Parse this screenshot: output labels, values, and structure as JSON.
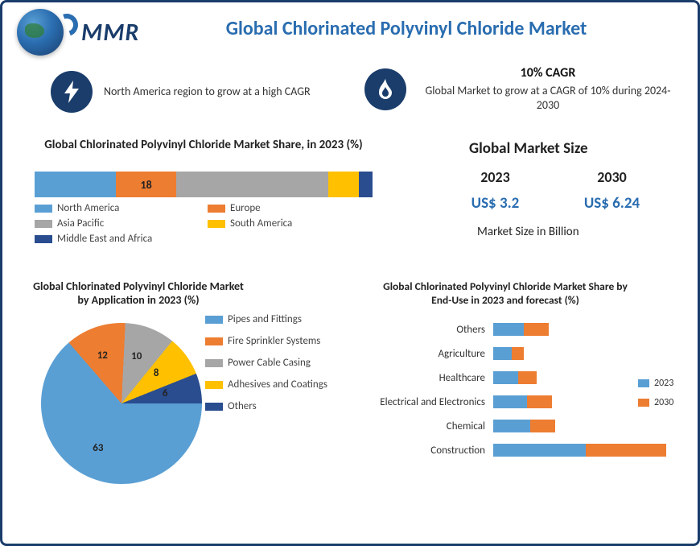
{
  "logo_text": "MMR",
  "title": "Global Chlorinated Polyvinyl Chloride Market",
  "colors": {
    "brand_dark": "#1a3d6b",
    "brand_blue": "#2a6db0",
    "series_blue": "#5a9fd4",
    "series_orange": "#ed7d31",
    "series_gray": "#a6a6a6",
    "series_yellow": "#ffc000",
    "series_dkblue": "#2a4d8f",
    "text": "#222222"
  },
  "callouts": {
    "c1": {
      "icon": "bolt-icon",
      "glyph": "⚡",
      "text": "North America region to grow at a high CAGR"
    },
    "c2": {
      "icon": "flame-icon",
      "glyph": "🔥",
      "cagr": "10% CAGR",
      "text": "Global Market to grow at a CAGR of 10% during 2024-2030"
    }
  },
  "stacked": {
    "title": "Global Chlorinated Polyvinyl Chloride Market Share, in 2023 (%)",
    "show_label_on_segment_index": 1,
    "segments": [
      {
        "label": "North America",
        "value": 24,
        "color": "#5a9fd4"
      },
      {
        "label": "Europe",
        "value": 18,
        "color": "#ed7d31"
      },
      {
        "label": "Asia Pacific",
        "value": 45,
        "color": "#a6a6a6"
      },
      {
        "label": "South America",
        "value": 9,
        "color": "#ffc000"
      },
      {
        "label": "Middle East and Africa",
        "value": 4,
        "color": "#2a4d8f"
      }
    ]
  },
  "market_size": {
    "title": "Global Market Size",
    "years": [
      "2023",
      "2030"
    ],
    "values": [
      "US$ 3.2",
      "US$ 6.24"
    ],
    "unit_text": "Market Size in Billion",
    "value_color": "#2a6db0"
  },
  "pie": {
    "title": "Global Chlorinated Polyvinyl Chloride Market by Application in 2023 (%)",
    "start_angle_deg": 90,
    "slices": [
      {
        "label": "Pipes and Fittings",
        "value": 63,
        "color": "#5a9fd4"
      },
      {
        "label": "Fire Sprinkler Systems",
        "value": 12,
        "color": "#ed7d31"
      },
      {
        "label": "Power Cable Casing",
        "value": 10,
        "color": "#a6a6a6"
      },
      {
        "label": "Adhesives and Coatings",
        "value": 8,
        "color": "#ffc000"
      },
      {
        "label": "Others",
        "value": 6,
        "color": "#2a4d8f"
      }
    ]
  },
  "hbar": {
    "title": "Global Chlorinated Polyvinyl Chloride Market Share by End-Use in 2023 and forecast (%)",
    "xmax": 60,
    "series": [
      {
        "label": "2023",
        "color": "#5a9fd4"
      },
      {
        "label": "2030",
        "color": "#ed7d31"
      }
    ],
    "categories": [
      {
        "name": "Others",
        "values": [
          10,
          8
        ]
      },
      {
        "name": "Agriculture",
        "values": [
          6,
          4
        ]
      },
      {
        "name": "Healthcare",
        "values": [
          8,
          6
        ]
      },
      {
        "name": "Electrical and Electronics",
        "values": [
          11,
          8
        ]
      },
      {
        "name": "Chemical",
        "values": [
          12,
          8
        ]
      },
      {
        "name": "Construction",
        "values": [
          30,
          26
        ]
      }
    ]
  }
}
